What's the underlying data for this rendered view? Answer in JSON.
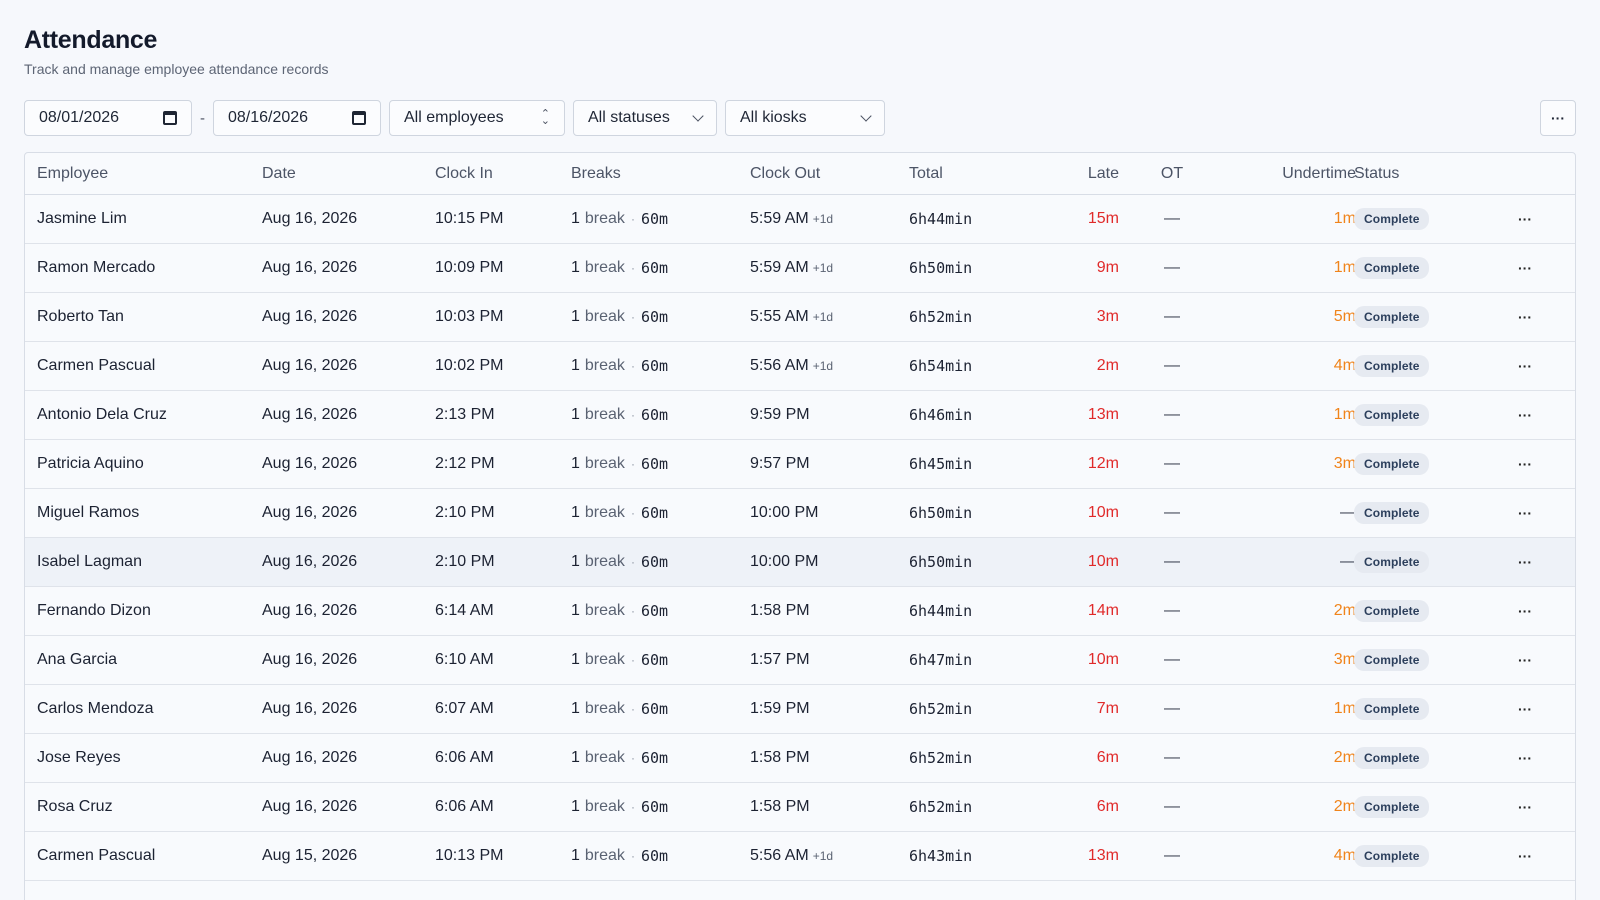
{
  "page": {
    "title": "Attendance",
    "subtitle": "Track and manage employee attendance records"
  },
  "filters": {
    "date_from": "08/01/2026",
    "date_sep": "-",
    "date_to": "08/16/2026",
    "employee": "All employees",
    "status": "All statuses",
    "kiosk": "All kiosks",
    "more": "···"
  },
  "table": {
    "headers": {
      "employee": "Employee",
      "date": "Date",
      "clock_in": "Clock In",
      "breaks": "Breaks",
      "clock_out": "Clock Out",
      "total": "Total",
      "late": "Late",
      "ot": "OT",
      "undertime": "Undertime",
      "status": "Status"
    },
    "rows": [
      {
        "employee": "Jasmine Lim",
        "date": "Aug 16, 2026",
        "clock_in": "10:15 PM",
        "break_count": "1",
        "break_word": "break",
        "break_dur": "60m",
        "clock_out": "5:59 AM",
        "next_day": "+1d",
        "total": "6h44min",
        "late": "15m",
        "ot": "—",
        "undertime": "1m",
        "status": "Complete",
        "more": "···"
      },
      {
        "employee": "Ramon Mercado",
        "date": "Aug 16, 2026",
        "clock_in": "10:09 PM",
        "break_count": "1",
        "break_word": "break",
        "break_dur": "60m",
        "clock_out": "5:59 AM",
        "next_day": "+1d",
        "total": "6h50min",
        "late": "9m",
        "ot": "—",
        "undertime": "1m",
        "status": "Complete",
        "more": "···"
      },
      {
        "employee": "Roberto Tan",
        "date": "Aug 16, 2026",
        "clock_in": "10:03 PM",
        "break_count": "1",
        "break_word": "break",
        "break_dur": "60m",
        "clock_out": "5:55 AM",
        "next_day": "+1d",
        "total": "6h52min",
        "late": "3m",
        "ot": "—",
        "undertime": "5m",
        "status": "Complete",
        "more": "···"
      },
      {
        "employee": "Carmen Pascual",
        "date": "Aug 16, 2026",
        "clock_in": "10:02 PM",
        "break_count": "1",
        "break_word": "break",
        "break_dur": "60m",
        "clock_out": "5:56 AM",
        "next_day": "+1d",
        "total": "6h54min",
        "late": "2m",
        "ot": "—",
        "undertime": "4m",
        "status": "Complete",
        "more": "···"
      },
      {
        "employee": "Antonio Dela Cruz",
        "date": "Aug 16, 2026",
        "clock_in": "2:13 PM",
        "break_count": "1",
        "break_word": "break",
        "break_dur": "60m",
        "clock_out": "9:59 PM",
        "next_day": "",
        "total": "6h46min",
        "late": "13m",
        "ot": "—",
        "undertime": "1m",
        "status": "Complete",
        "more": "···"
      },
      {
        "employee": "Patricia Aquino",
        "date": "Aug 16, 2026",
        "clock_in": "2:12 PM",
        "break_count": "1",
        "break_word": "break",
        "break_dur": "60m",
        "clock_out": "9:57 PM",
        "next_day": "",
        "total": "6h45min",
        "late": "12m",
        "ot": "—",
        "undertime": "3m",
        "status": "Complete",
        "more": "···"
      },
      {
        "employee": "Miguel Ramos",
        "date": "Aug 16, 2026",
        "clock_in": "2:10 PM",
        "break_count": "1",
        "break_word": "break",
        "break_dur": "60m",
        "clock_out": "10:00 PM",
        "next_day": "",
        "total": "6h50min",
        "late": "10m",
        "ot": "—",
        "undertime": "—",
        "status": "Complete",
        "more": "···"
      },
      {
        "employee": "Isabel Lagman",
        "date": "Aug 16, 2026",
        "clock_in": "2:10 PM",
        "break_count": "1",
        "break_word": "break",
        "break_dur": "60m",
        "clock_out": "10:00 PM",
        "next_day": "",
        "total": "6h50min",
        "late": "10m",
        "ot": "—",
        "undertime": "—",
        "status": "Complete",
        "more": "···",
        "highlight": true
      },
      {
        "employee": "Fernando Dizon",
        "date": "Aug 16, 2026",
        "clock_in": "6:14 AM",
        "break_count": "1",
        "break_word": "break",
        "break_dur": "60m",
        "clock_out": "1:58 PM",
        "next_day": "",
        "total": "6h44min",
        "late": "14m",
        "ot": "—",
        "undertime": "2m",
        "status": "Complete",
        "more": "···"
      },
      {
        "employee": "Ana Garcia",
        "date": "Aug 16, 2026",
        "clock_in": "6:10 AM",
        "break_count": "1",
        "break_word": "break",
        "break_dur": "60m",
        "clock_out": "1:57 PM",
        "next_day": "",
        "total": "6h47min",
        "late": "10m",
        "ot": "—",
        "undertime": "3m",
        "status": "Complete",
        "more": "···"
      },
      {
        "employee": "Carlos Mendoza",
        "date": "Aug 16, 2026",
        "clock_in": "6:07 AM",
        "break_count": "1",
        "break_word": "break",
        "break_dur": "60m",
        "clock_out": "1:59 PM",
        "next_day": "",
        "total": "6h52min",
        "late": "7m",
        "ot": "—",
        "undertime": "1m",
        "status": "Complete",
        "more": "···"
      },
      {
        "employee": "Jose Reyes",
        "date": "Aug 16, 2026",
        "clock_in": "6:06 AM",
        "break_count": "1",
        "break_word": "break",
        "break_dur": "60m",
        "clock_out": "1:58 PM",
        "next_day": "",
        "total": "6h52min",
        "late": "6m",
        "ot": "—",
        "undertime": "2m",
        "status": "Complete",
        "more": "···"
      },
      {
        "employee": "Rosa Cruz",
        "date": "Aug 16, 2026",
        "clock_in": "6:06 AM",
        "break_count": "1",
        "break_word": "break",
        "break_dur": "60m",
        "clock_out": "1:58 PM",
        "next_day": "",
        "total": "6h52min",
        "late": "6m",
        "ot": "—",
        "undertime": "2m",
        "status": "Complete",
        "more": "···"
      },
      {
        "employee": "Carmen Pascual",
        "date": "Aug 15, 2026",
        "clock_in": "10:13 PM",
        "break_count": "1",
        "break_word": "break",
        "break_dur": "60m",
        "clock_out": "5:56 AM",
        "next_day": "+1d",
        "total": "6h43min",
        "late": "13m",
        "ot": "—",
        "undertime": "4m",
        "status": "Complete",
        "more": "···"
      }
    ]
  },
  "colors": {
    "late": "#e02a2a",
    "undertime": "#f0841b",
    "badge_bg": "#e6eaf1",
    "background": "#f6f8fc"
  },
  "icons": {
    "calendar": "calendar-icon",
    "chevron": "chevron-down-icon",
    "sort": "sort-updown-icon",
    "more": "more-horizontal-icon"
  }
}
